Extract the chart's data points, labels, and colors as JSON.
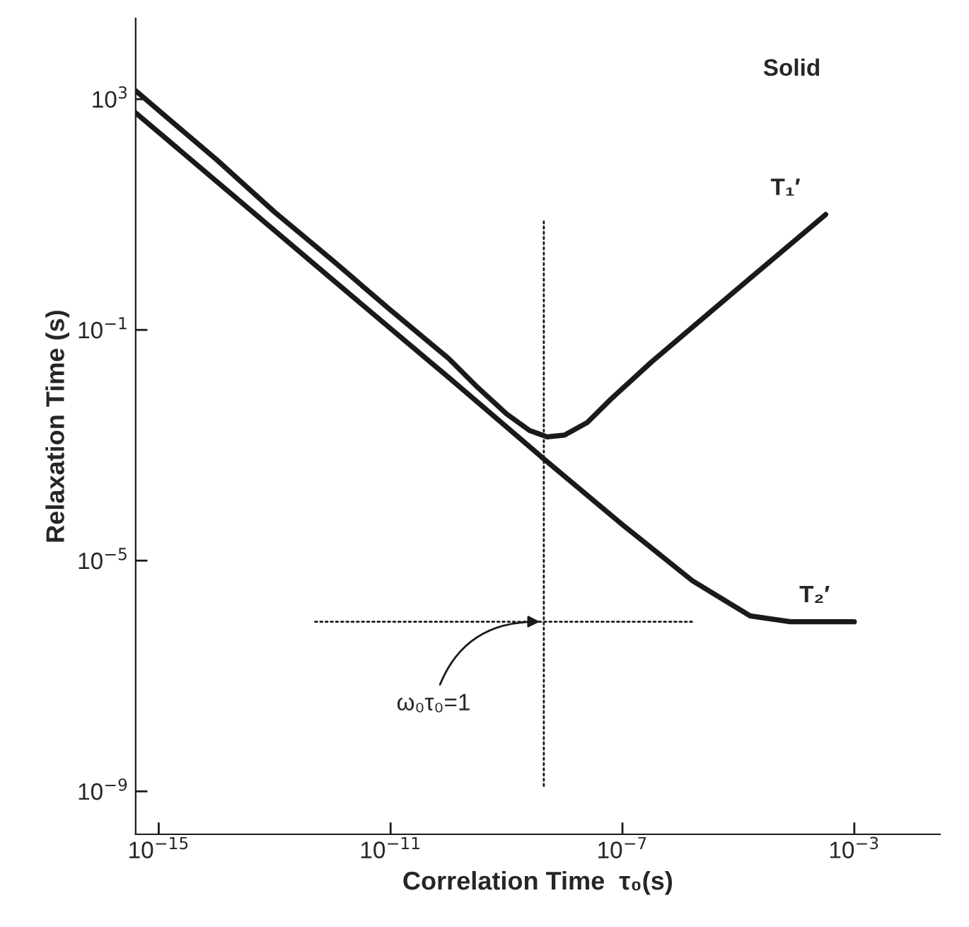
{
  "chart_data": {
    "type": "line",
    "xlabel": "Correlation Time  τ₀(s)",
    "ylabel": "Relaxation Time (s)",
    "log": "xy",
    "grid": false,
    "legend": false,
    "line_style": "solid",
    "marker": "none",
    "xlim": [
      4e-16,
      0.03
    ],
    "ylim": [
      1.8e-10,
      25000.0
    ],
    "xticks": [
      {
        "value": 1e-15,
        "label": "10$^{−15}$"
      },
      {
        "value": 1e-11,
        "label": "10$^{−11}$"
      },
      {
        "value": 1e-07,
        "label": "10$^{−7}$"
      },
      {
        "value": 0.001,
        "label": "10$^{−3}$"
      }
    ],
    "yticks": [
      {
        "value": 1e-09,
        "label": "10$^{−9}$"
      },
      {
        "value": 1e-05,
        "label": "10$^{−5}$"
      },
      {
        "value": 0.1,
        "label": "10$^{−1}$"
      },
      {
        "value": 1000,
        "label": "10$^{3}$"
      }
    ],
    "series": [
      {
        "name": "T₁′",
        "color": "#1a1a1a",
        "x": [
          4e-16,
          1e-14,
          1e-13,
          1e-12,
          1e-11,
          1e-10,
          3.2e-10,
          1e-09,
          2.5e-09,
          5e-09,
          1e-08,
          2.5e-08,
          6.3e-08,
          3.2e-07,
          1e-05,
          0.00032
        ],
        "values": [
          1400,
          89,
          11,
          1.6,
          0.22,
          0.032,
          0.01,
          0.0035,
          0.0018,
          0.0014,
          0.0015,
          0.0025,
          0.0063,
          0.028,
          0.53,
          10
        ]
      },
      {
        "name": "T₂′",
        "color": "#1a1a1a",
        "x": [
          4e-16,
          1e-12,
          1e-10,
          4.4e-09,
          1e-07,
          1.6e-06,
          1.6e-05,
          7.9e-05,
          0.001
        ],
        "values": [
          580,
          0.74,
          0.015,
          0.00058,
          4.2e-05,
          4.5e-06,
          1.1e-06,
          8.7e-07,
          8.7e-07
        ]
      },
      {
        "color": "#1a1a1a",
        "line_style": "dotted",
        "x": [
          4.4e-09,
          4.4e-09
        ],
        "values": [
          7.6,
          1.1e-09
        ]
      },
      {
        "color": "#1a1a1a",
        "line_style": "dotted",
        "x": [
          5e-13,
          1.6e-06
        ],
        "values": [
          8.7e-07,
          8.7e-07
        ]
      }
    ],
    "annotations": [
      "Solid",
      {
        "text": "ω₀τ₀=1",
        "x": 4.4e-09,
        "y": 8.7e-07
      }
    ]
  }
}
